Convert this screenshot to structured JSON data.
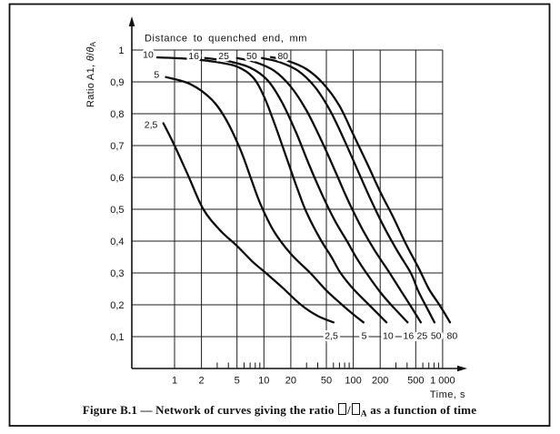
{
  "figure": {
    "caption": {
      "prefix": "Figure B.1 — Network of curves giving the ratio ",
      "separator": "/",
      "subscript": "A",
      "suffix": " as a function of time"
    }
  },
  "chart_data": {
    "type": "line",
    "title": "Distance to quenched end, mm",
    "xlabel": "Time, s",
    "ylabel": {
      "main": "Ratio A1, ",
      "theta": "θ",
      "slash": "/",
      "theta2": "θ",
      "sub": "A"
    },
    "x_scale": "log",
    "ylim": [
      0,
      1
    ],
    "xlim_plot": [
      0.333,
      1000
    ],
    "grid": true,
    "legend_position": "labels-on-curves",
    "x_ticks": [
      {
        "label": "1",
        "value": 1
      },
      {
        "label": "2",
        "value": 2
      },
      {
        "label": "5",
        "value": 5
      },
      {
        "label": "10",
        "value": 10
      },
      {
        "label": "20",
        "value": 20
      },
      {
        "label": "50",
        "value": 50
      },
      {
        "label": "100",
        "value": 100
      },
      {
        "label": "200",
        "value": 200
      },
      {
        "label": "500",
        "value": 500
      },
      {
        "label": "1 000",
        "value": 1000
      }
    ],
    "x_minor_ticks": [
      3,
      4,
      6,
      7,
      8,
      9,
      30,
      40,
      60,
      70,
      80,
      90,
      300,
      400,
      600,
      700,
      800,
      900
    ],
    "y_ticks": [
      {
        "label": "1",
        "value": 1.0
      },
      {
        "label": "0,9",
        "value": 0.9
      },
      {
        "label": "0,8",
        "value": 0.8
      },
      {
        "label": "0,7",
        "value": 0.7
      },
      {
        "label": "0,6",
        "value": 0.6
      },
      {
        "label": "0,5",
        "value": 0.5
      },
      {
        "label": "0,4",
        "value": 0.4
      },
      {
        "label": "0,3",
        "value": 0.3
      },
      {
        "label": "0,2",
        "value": 0.2
      },
      {
        "label": "0,1",
        "value": 0.1
      }
    ],
    "series": [
      {
        "name": "2,5",
        "distance_mm": 2.5,
        "top_label": {
          "t": 0.545,
          "r": 0.766
        },
        "end_label": {
          "t": 57,
          "r": 0.103
        },
        "points": [
          [
            0.75,
            0.77
          ],
          [
            1,
            0.7
          ],
          [
            1.45,
            0.6
          ],
          [
            2.1,
            0.5
          ],
          [
            3.2,
            0.435
          ],
          [
            5,
            0.385
          ],
          [
            7.5,
            0.335
          ],
          [
            10.5,
            0.3
          ],
          [
            16,
            0.255
          ],
          [
            26,
            0.2
          ],
          [
            40,
            0.165
          ],
          [
            60,
            0.145
          ]
        ]
      },
      {
        "name": "5",
        "distance_mm": 5,
        "top_label": {
          "t": 0.63,
          "r": 0.923
        },
        "end_label": {
          "t": 132,
          "r": 0.103
        },
        "points": [
          [
            0.8,
            0.915
          ],
          [
            1.5,
            0.893
          ],
          [
            2.6,
            0.845
          ],
          [
            3.8,
            0.78
          ],
          [
            5.5,
            0.685
          ],
          [
            7.3,
            0.59
          ],
          [
            9.2,
            0.515
          ],
          [
            13,
            0.43
          ],
          [
            20,
            0.36
          ],
          [
            33,
            0.3
          ],
          [
            50,
            0.245
          ],
          [
            75,
            0.2
          ],
          [
            100,
            0.17
          ],
          [
            130,
            0.145
          ]
        ]
      },
      {
        "name": "10",
        "distance_mm": 10,
        "top_label": {
          "t": 0.507,
          "r": 0.986
        },
        "end_label": {
          "t": 245,
          "r": 0.103
        },
        "points": [
          [
            0.64,
            0.977
          ],
          [
            1.5,
            0.972
          ],
          [
            3,
            0.962
          ],
          [
            5,
            0.948
          ],
          [
            7.5,
            0.915
          ],
          [
            10,
            0.855
          ],
          [
            13.5,
            0.76
          ],
          [
            18,
            0.66
          ],
          [
            24,
            0.56
          ],
          [
            30,
            0.49
          ],
          [
            42,
            0.41
          ],
          [
            57,
            0.35
          ],
          [
            72,
            0.3
          ],
          [
            100,
            0.25
          ],
          [
            150,
            0.2
          ],
          [
            235,
            0.145
          ]
        ]
      },
      {
        "name": "16",
        "distance_mm": 16,
        "top_label": {
          "t": 1.64,
          "r": 0.981
        },
        "end_label": {
          "t": 415,
          "r": 0.103
        },
        "points": [
          [
            2.2,
            0.975
          ],
          [
            4,
            0.965
          ],
          [
            7,
            0.945
          ],
          [
            11,
            0.905
          ],
          [
            16,
            0.835
          ],
          [
            23,
            0.74
          ],
          [
            32,
            0.64
          ],
          [
            45,
            0.545
          ],
          [
            62,
            0.465
          ],
          [
            85,
            0.4
          ],
          [
            110,
            0.345
          ],
          [
            140,
            0.3
          ],
          [
            200,
            0.24
          ],
          [
            265,
            0.2
          ],
          [
            405,
            0.145
          ]
        ]
      },
      {
        "name": "25",
        "distance_mm": 25,
        "top_label": {
          "t": 3.55,
          "r": 0.981
        },
        "end_label": {
          "t": 590,
          "r": 0.103
        },
        "points": [
          [
            5,
            0.975
          ],
          [
            8,
            0.962
          ],
          [
            13,
            0.935
          ],
          [
            20,
            0.885
          ],
          [
            30,
            0.81
          ],
          [
            45,
            0.71
          ],
          [
            65,
            0.61
          ],
          [
            90,
            0.52
          ],
          [
            125,
            0.44
          ],
          [
            170,
            0.375
          ],
          [
            255,
            0.3
          ],
          [
            340,
            0.245
          ],
          [
            430,
            0.2
          ],
          [
            570,
            0.145
          ]
        ]
      },
      {
        "name": "50",
        "distance_mm": 50,
        "top_label": {
          "t": 7.3,
          "r": 0.981
        },
        "end_label": {
          "t": 845,
          "r": 0.103
        },
        "points": [
          [
            9.5,
            0.975
          ],
          [
            15,
            0.962
          ],
          [
            24,
            0.935
          ],
          [
            37,
            0.885
          ],
          [
            55,
            0.81
          ],
          [
            80,
            0.715
          ],
          [
            115,
            0.615
          ],
          [
            160,
            0.525
          ],
          [
            220,
            0.445
          ],
          [
            310,
            0.37
          ],
          [
            440,
            0.3
          ],
          [
            530,
            0.245
          ],
          [
            640,
            0.2
          ],
          [
            810,
            0.145
          ]
        ]
      },
      {
        "name": "80",
        "distance_mm": 80,
        "top_label": {
          "t": 16.3,
          "r": 0.981
        },
        "end_label": {
          "t": 1280,
          "r": 0.103
        },
        "points": [
          [
            12,
            0.978
          ],
          [
            19,
            0.965
          ],
          [
            30,
            0.94
          ],
          [
            46,
            0.895
          ],
          [
            70,
            0.825
          ],
          [
            100,
            0.735
          ],
          [
            145,
            0.64
          ],
          [
            200,
            0.555
          ],
          [
            280,
            0.475
          ],
          [
            390,
            0.39
          ],
          [
            540,
            0.315
          ],
          [
            700,
            0.25
          ],
          [
            920,
            0.2
          ],
          [
            1210,
            0.145
          ]
        ]
      }
    ]
  }
}
